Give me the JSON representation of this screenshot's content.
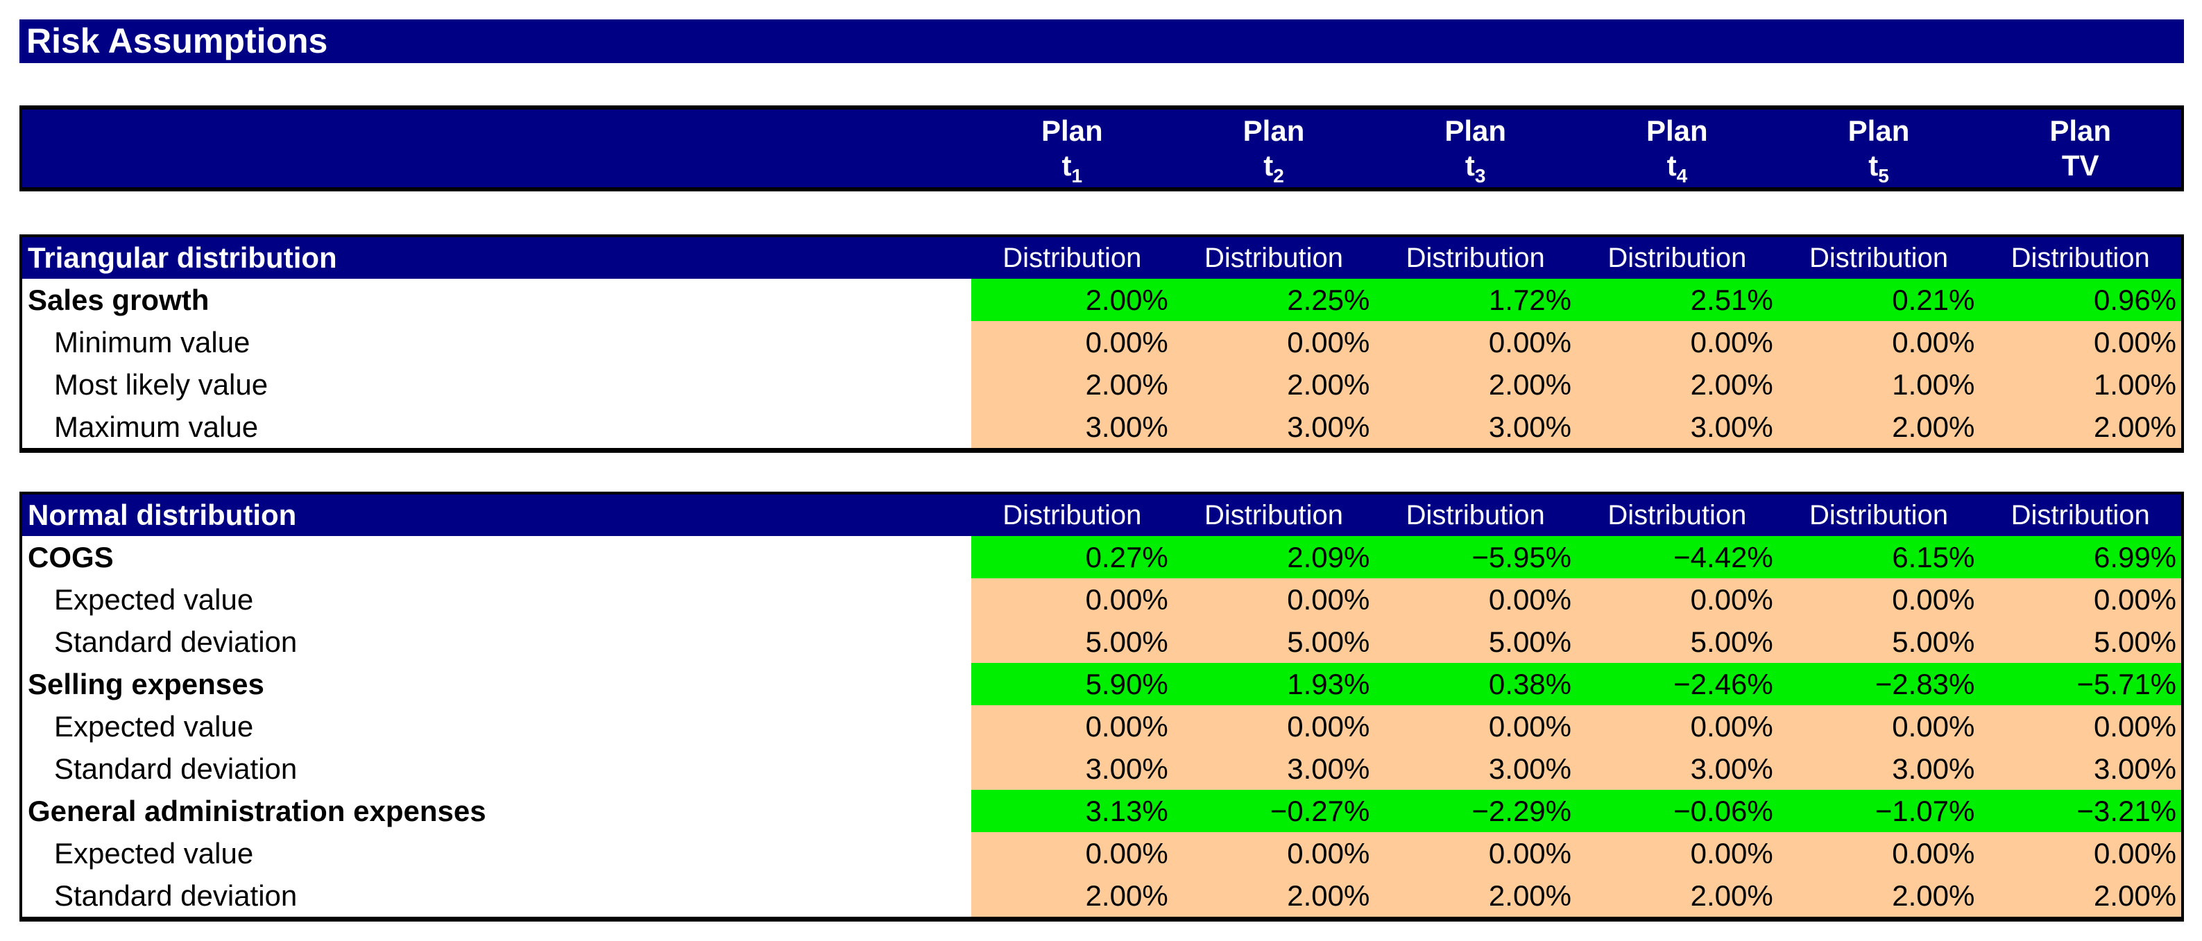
{
  "title_bar": {
    "title": "Risk Assumptions"
  },
  "colors": {
    "navy_header": "#000084",
    "result_green": "#00ee00",
    "input_peach": "#ffcc99",
    "border_black": "#000000"
  },
  "plan_header": {
    "columns": [
      {
        "top": "Plan",
        "base": "t",
        "sub": "1"
      },
      {
        "top": "Plan",
        "base": "t",
        "sub": "2"
      },
      {
        "top": "Plan",
        "base": "t",
        "sub": "3"
      },
      {
        "top": "Plan",
        "base": "t",
        "sub": "4"
      },
      {
        "top": "Plan",
        "base": "t",
        "sub": "5"
      },
      {
        "top": "Plan",
        "base": "TV",
        "sub": ""
      }
    ]
  },
  "tables": [
    {
      "title": "Triangular distribution",
      "column_header": "Distribution",
      "rows": [
        {
          "label": "Sales growth",
          "type": "result",
          "values": [
            "2.00%",
            "2.25%",
            "1.72%",
            "2.51%",
            "0.21%",
            "0.96%"
          ]
        },
        {
          "label": "Minimum value",
          "type": "input",
          "values": [
            "0.00%",
            "0.00%",
            "0.00%",
            "0.00%",
            "0.00%",
            "0.00%"
          ]
        },
        {
          "label": "Most likely value",
          "type": "input",
          "values": [
            "2.00%",
            "2.00%",
            "2.00%",
            "2.00%",
            "1.00%",
            "1.00%"
          ]
        },
        {
          "label": "Maximum value",
          "type": "input",
          "values": [
            "3.00%",
            "3.00%",
            "3.00%",
            "3.00%",
            "2.00%",
            "2.00%"
          ]
        }
      ]
    },
    {
      "title": "Normal distribution",
      "column_header": "Distribution",
      "rows": [
        {
          "label": "COGS",
          "type": "result",
          "values": [
            "0.27%",
            "2.09%",
            "−5.95%",
            "−4.42%",
            "6.15%",
            "6.99%"
          ]
        },
        {
          "label": "Expected value",
          "type": "input",
          "values": [
            "0.00%",
            "0.00%",
            "0.00%",
            "0.00%",
            "0.00%",
            "0.00%"
          ]
        },
        {
          "label": "Standard deviation",
          "type": "input",
          "values": [
            "5.00%",
            "5.00%",
            "5.00%",
            "5.00%",
            "5.00%",
            "5.00%"
          ]
        },
        {
          "label": "Selling expenses",
          "type": "result",
          "values": [
            "5.90%",
            "1.93%",
            "0.38%",
            "−2.46%",
            "−2.83%",
            "−5.71%"
          ]
        },
        {
          "label": "Expected value",
          "type": "input",
          "values": [
            "0.00%",
            "0.00%",
            "0.00%",
            "0.00%",
            "0.00%",
            "0.00%"
          ]
        },
        {
          "label": "Standard deviation",
          "type": "input",
          "values": [
            "3.00%",
            "3.00%",
            "3.00%",
            "3.00%",
            "3.00%",
            "3.00%"
          ]
        },
        {
          "label": "General administration expenses",
          "type": "result",
          "values": [
            "3.13%",
            "−0.27%",
            "−2.29%",
            "−0.06%",
            "−1.07%",
            "−3.21%"
          ]
        },
        {
          "label": "Expected value",
          "type": "input",
          "values": [
            "0.00%",
            "0.00%",
            "0.00%",
            "0.00%",
            "0.00%",
            "0.00%"
          ]
        },
        {
          "label": "Standard deviation",
          "type": "input",
          "values": [
            "2.00%",
            "2.00%",
            "2.00%",
            "2.00%",
            "2.00%",
            "2.00%"
          ]
        }
      ]
    }
  ]
}
